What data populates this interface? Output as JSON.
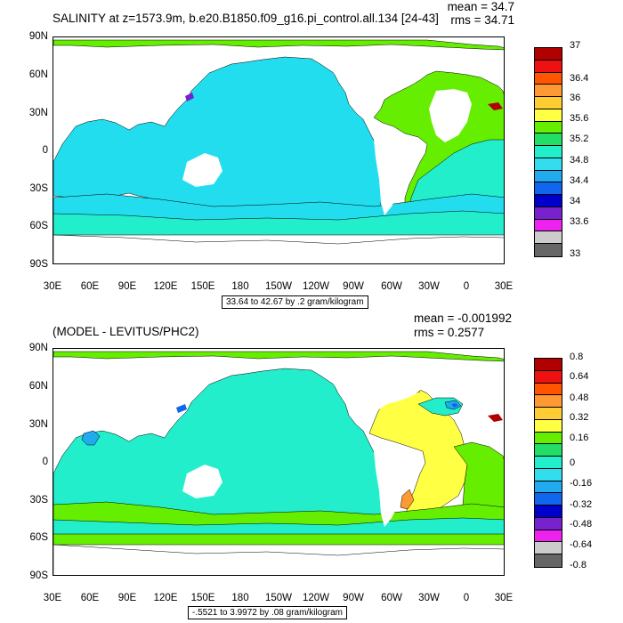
{
  "top": {
    "title": "SALINITY at z=1573.9m, b.e20.B1850.f09_g16.pi_control.all.134 [24-43]",
    "mean": "mean = 34.7",
    "rms": "rms = 34.71",
    "range_label": "33.64 to 42.67 by .2 gram/kilogram",
    "colorbar": {
      "labels": [
        "37",
        "36.4",
        "36",
        "35.6",
        "35.2",
        "34.8",
        "34.4",
        "34",
        "33.6",
        "33"
      ],
      "colors": [
        "#b00000",
        "#ee1111",
        "#ff5500",
        "#ff9933",
        "#ffcc33",
        "#ffff44",
        "#66ee00",
        "#22dd66",
        "#22eecc",
        "#33ddee",
        "#22aaee",
        "#1166ee",
        "#0000cc",
        "#7722cc",
        "#ee22ee",
        "#cccccc",
        "#666666"
      ]
    }
  },
  "bottom": {
    "title": "(MODEL - LEVITUS/PHC2)",
    "mean": "mean = -0.001992",
    "rms": "rms = 0.2577",
    "range_label": "-.5521 to 3.9972 by .08 gram/kilogram",
    "colorbar": {
      "labels": [
        "0.8",
        "0.64",
        "0.48",
        "0.32",
        "0.16",
        "0",
        "-0.16",
        "-0.32",
        "-0.48",
        "-0.64",
        "-0.8"
      ],
      "colors": [
        "#b00000",
        "#ee1111",
        "#ff5500",
        "#ff9933",
        "#ffcc33",
        "#ffff44",
        "#66ee00",
        "#22dd66",
        "#22eecc",
        "#33ddee",
        "#22aaee",
        "#1166ee",
        "#0000cc",
        "#7722cc",
        "#ee22ee",
        "#cccccc",
        "#666666"
      ]
    }
  },
  "axes": {
    "y_labels": [
      "90N",
      "60N",
      "30N",
      "0",
      "30S",
      "60S",
      "90S"
    ],
    "x_labels": [
      "30E",
      "60E",
      "90E",
      "120E",
      "150E",
      "180",
      "150W",
      "120W",
      "90W",
      "60W",
      "30W",
      "0",
      "30E"
    ]
  },
  "colors": {
    "pacific_top": "#22ddee",
    "pacific_bottom": "#22eecc",
    "atlantic_top": "#66ee00",
    "southern_top": "#22eecc",
    "green": "#66ee00",
    "yellow": "#ffff44",
    "orange_light": "#ffcc33",
    "orange": "#ff9933",
    "blue": "#1166ee",
    "purple": "#7722cc",
    "dark_red": "#b00000"
  }
}
